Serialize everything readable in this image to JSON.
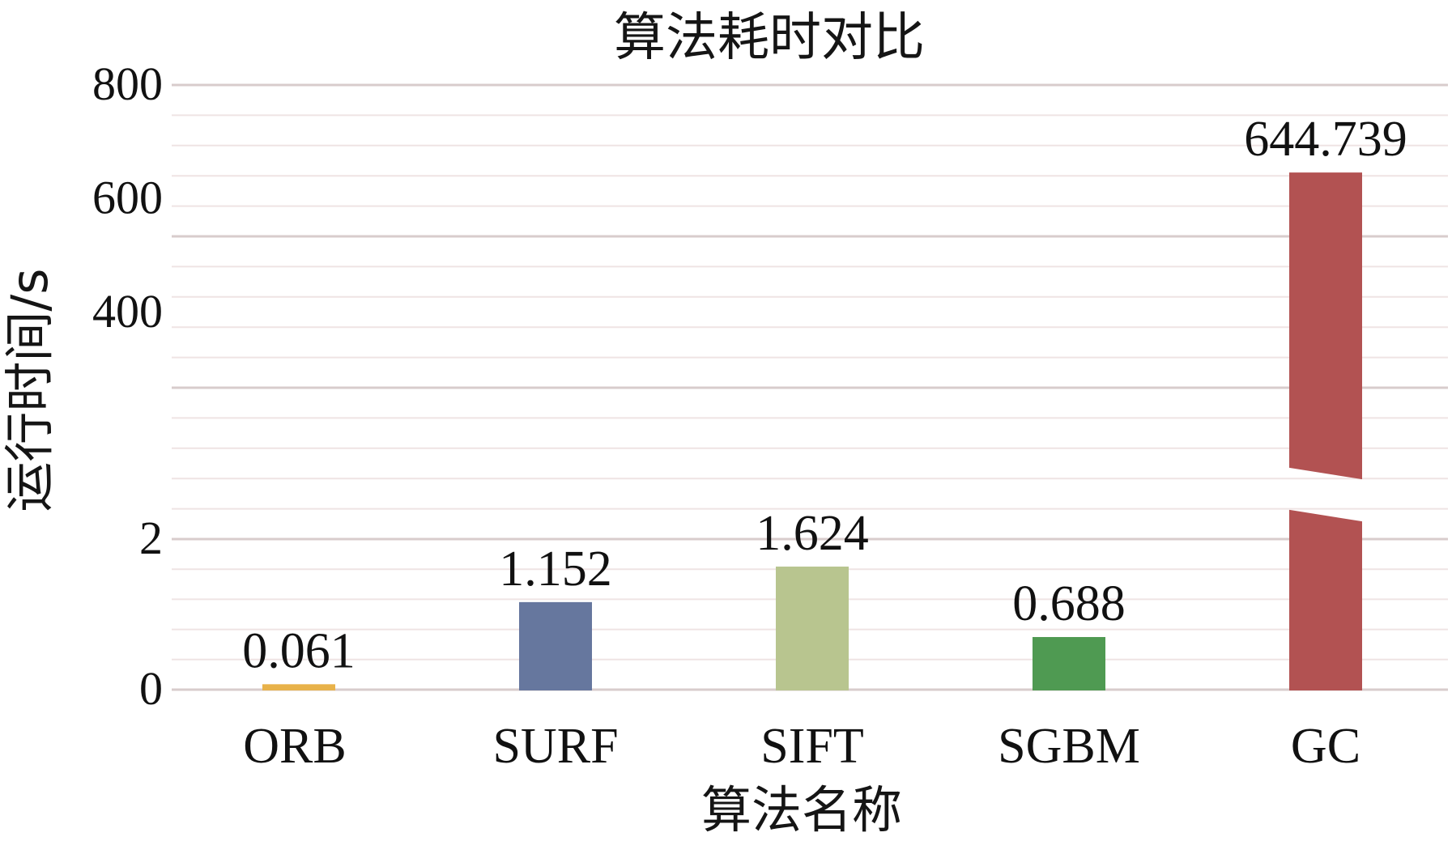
{
  "chart_data": {
    "type": "bar",
    "title": "算法耗时对比",
    "xlabel": "算法名称",
    "ylabel": "运行时间/s",
    "categories": [
      "ORB",
      "SURF",
      "SIFT",
      "SGBM",
      "GC"
    ],
    "values": [
      0.061,
      1.152,
      1.624,
      0.688,
      644.739
    ],
    "value_labels": [
      "0.061",
      "1.152",
      "1.624",
      "0.688",
      "644.739"
    ],
    "colors": [
      "#E8B24A",
      "#66779E",
      "#B8C58F",
      "#4F9A52",
      "#B25252"
    ],
    "broken_axis": {
      "lower_range": [
        0,
        2
      ],
      "upper_range": [
        2,
        800
      ],
      "lower_ticks": [
        "0",
        "2"
      ],
      "upper_ticks": [
        "400",
        "600",
        "800"
      ]
    },
    "grid": true,
    "legend": "none"
  }
}
